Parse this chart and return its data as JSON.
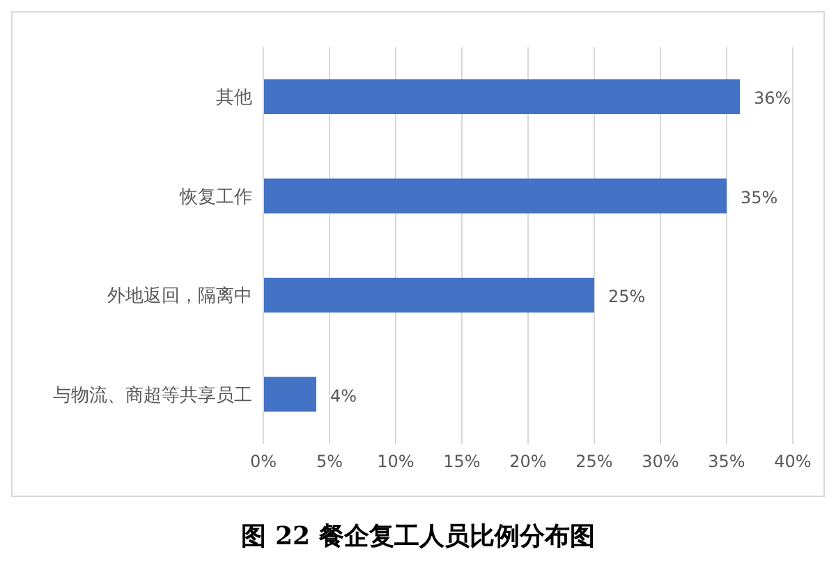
{
  "chart_data": {
    "type": "bar",
    "orientation": "horizontal",
    "title": "图 22 餐企复工人员比例分布图",
    "categories": [
      "其他",
      "恢复工作",
      "外地返回，隔离中",
      "与物流、商超等共享员工"
    ],
    "values": [
      36,
      35,
      25,
      4
    ],
    "color": "#4472c4",
    "value_labels": [
      "36%",
      "35%",
      "25%",
      "4%"
    ],
    "xlim": [
      0,
      40
    ],
    "xticks": [
      {
        "value": 0,
        "label": "0%"
      },
      {
        "value": 5,
        "label": "5%"
      },
      {
        "value": 10,
        "label": "10%"
      },
      {
        "value": 15,
        "label": "15%"
      },
      {
        "value": 20,
        "label": "20%"
      },
      {
        "value": 25,
        "label": "25%"
      },
      {
        "value": 30,
        "label": "30%"
      },
      {
        "value": 35,
        "label": "35%"
      },
      {
        "value": 40,
        "label": "40%"
      }
    ],
    "grid": "x",
    "legend": false
  }
}
